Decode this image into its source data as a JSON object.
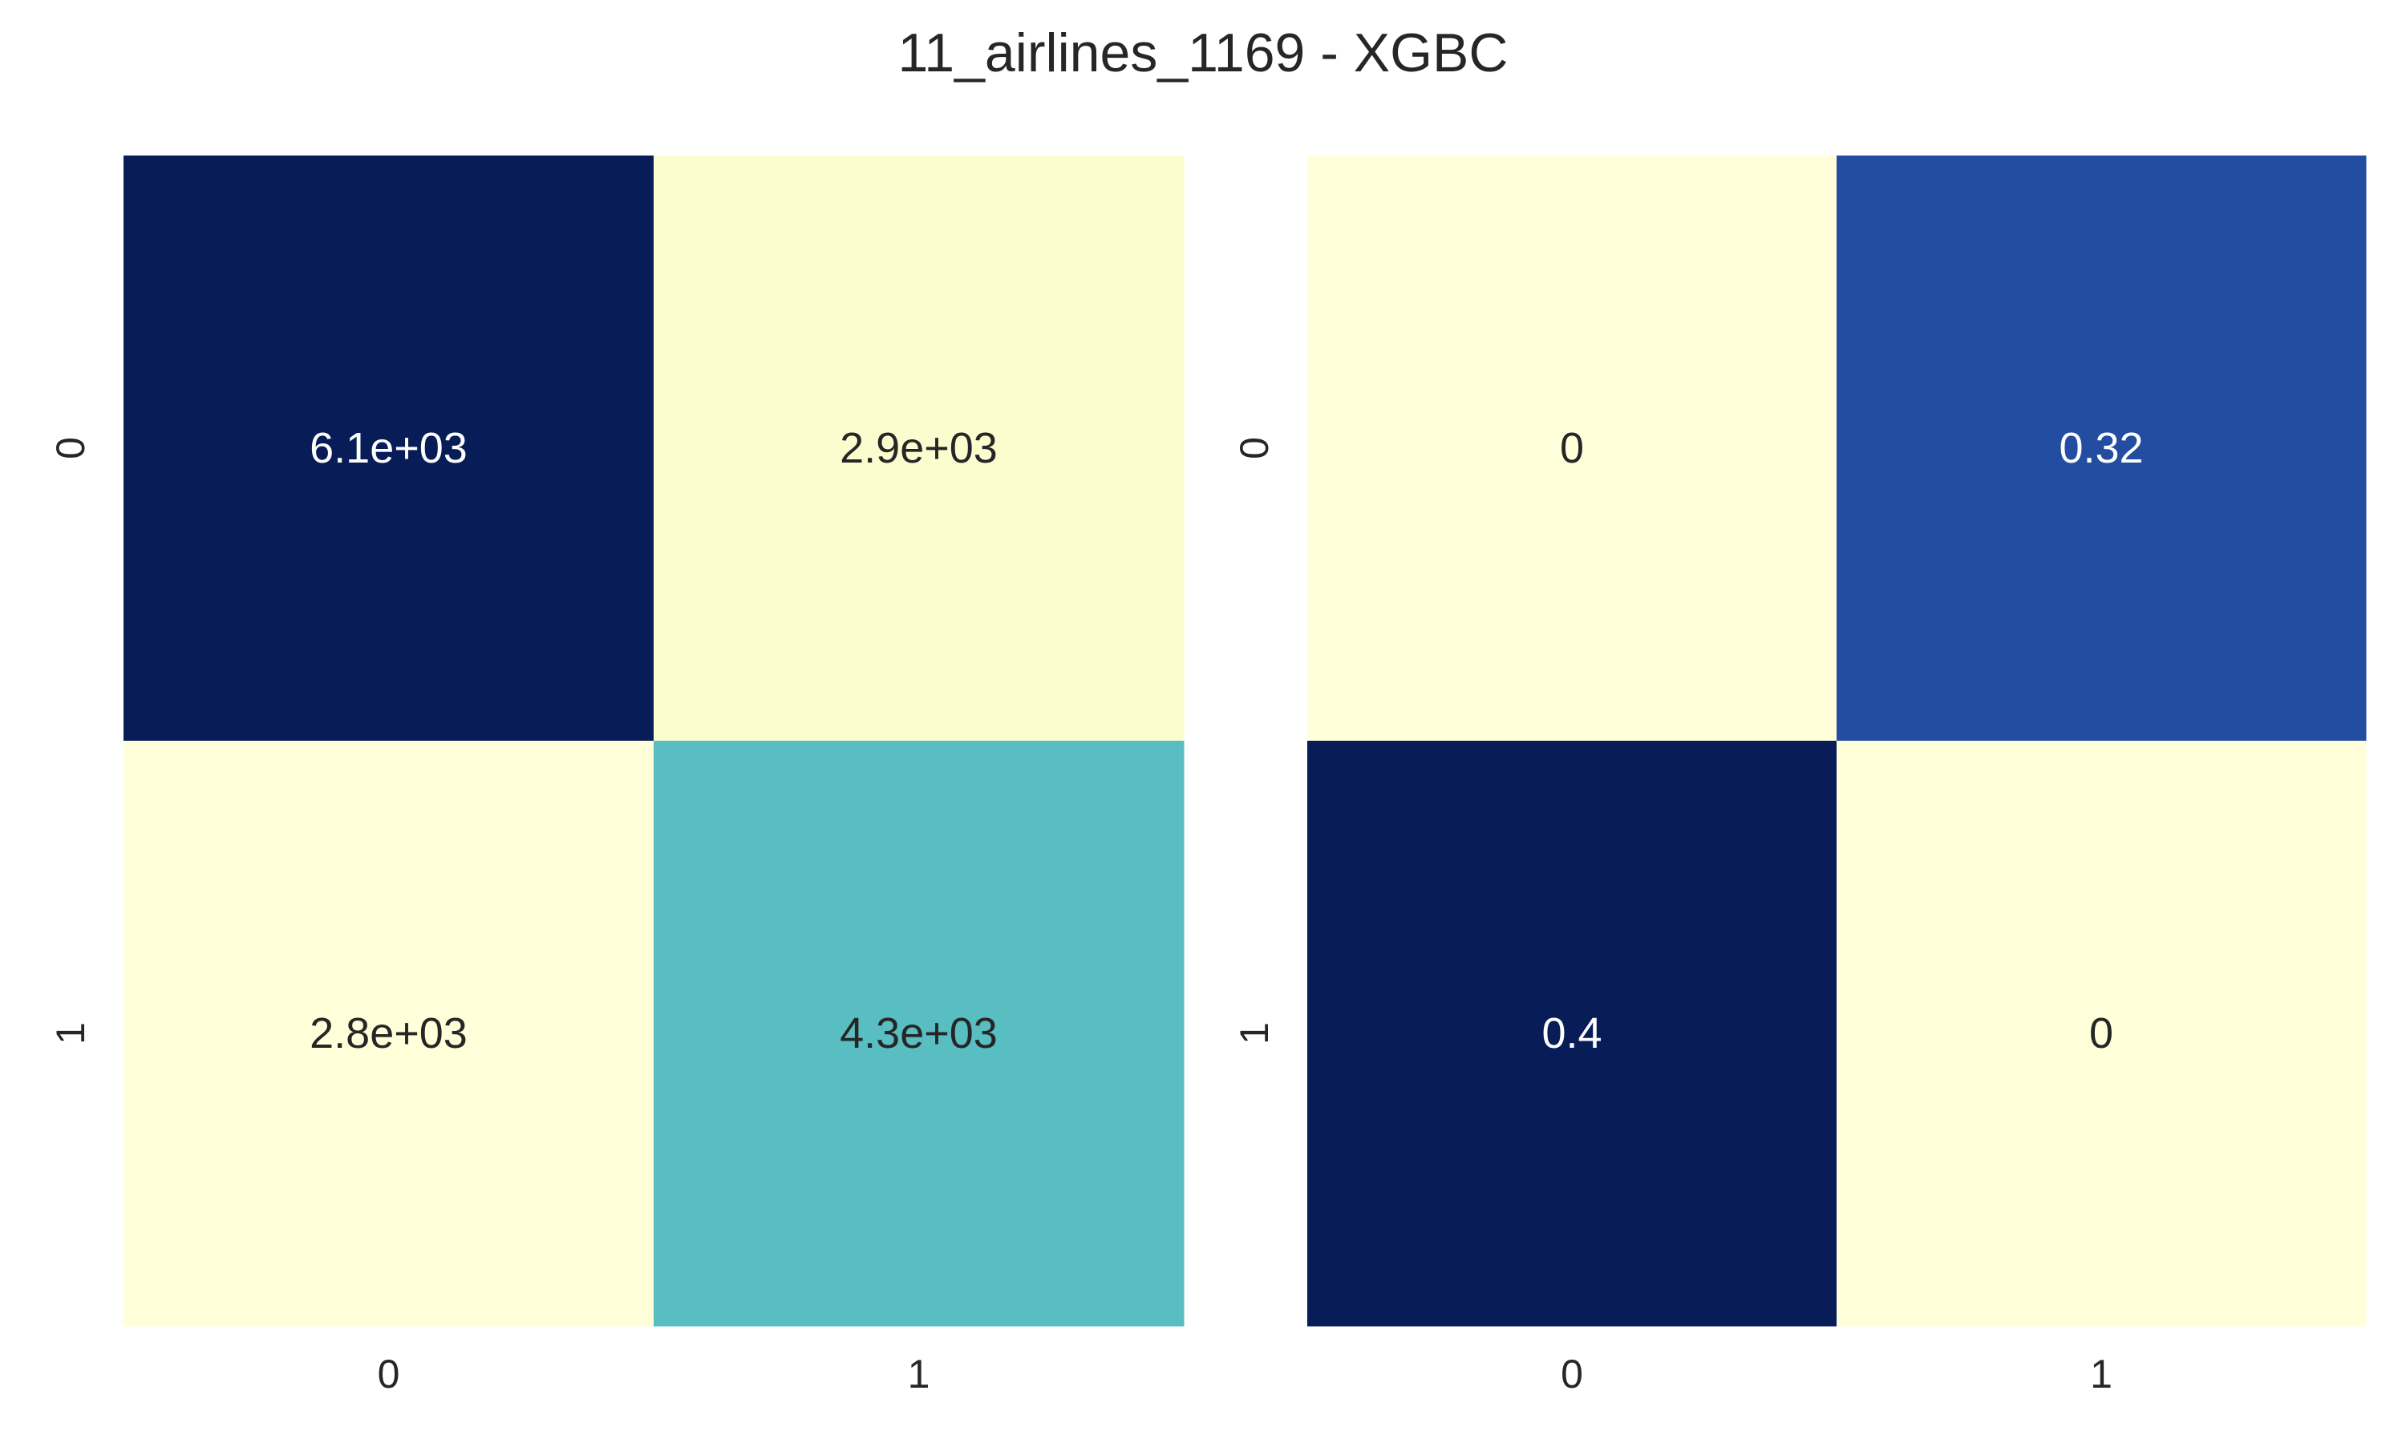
{
  "figure": {
    "title": "11_airlines_1169 - XGBC"
  },
  "chart_data": [
    {
      "type": "heatmap",
      "title": "",
      "xlabel": "",
      "ylabel": "",
      "x_categories": [
        "0",
        "1"
      ],
      "y_categories": [
        "0",
        "1"
      ],
      "values": [
        [
          6100,
          2900
        ],
        [
          2800,
          4300
        ]
      ],
      "annotations": [
        [
          "6.1e+03",
          "2.9e+03"
        ],
        [
          "2.8e+03",
          "4.3e+03"
        ]
      ],
      "colormap": "YlGnBu",
      "colorbar": false,
      "grid": false
    },
    {
      "type": "heatmap",
      "title": "",
      "xlabel": "",
      "ylabel": "",
      "x_categories": [
        "0",
        "1"
      ],
      "y_categories": [
        "0",
        "1"
      ],
      "values": [
        [
          0,
          0.32
        ],
        [
          0.4,
          0
        ]
      ],
      "annotations": [
        [
          "0",
          "0.32"
        ],
        [
          "0.4",
          "0"
        ]
      ],
      "colormap": "YlGnBu",
      "colorbar": false,
      "grid": false
    }
  ],
  "colors": {
    "colormap_stops": [
      "#ffffd9",
      "#edf8b1",
      "#c7e9b4",
      "#7fcdbb",
      "#41b6c4",
      "#1d91c0",
      "#225ea8",
      "#253494",
      "#081d58"
    ],
    "text_dark": "#262626",
    "text_light": "#ffffff",
    "tick_text": "#262626"
  }
}
